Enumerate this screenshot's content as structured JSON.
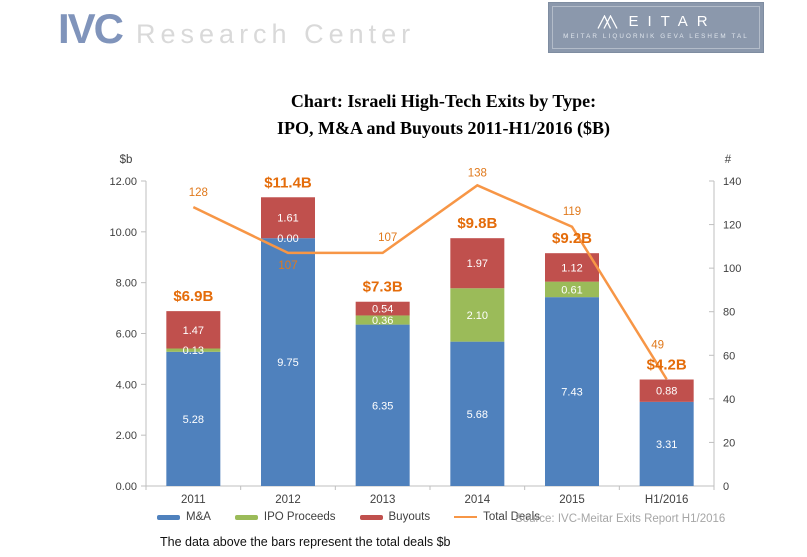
{
  "header": {
    "ivc_logo": {
      "name": "IVC",
      "subtitle": "Research Center"
    },
    "meitar_logo": {
      "name": "MEITAR",
      "subtitle": "MEITAR LIQUORNIK GEVA LESHEM TAL"
    }
  },
  "title": {
    "line1": "Chart: Israeli High-Tech Exits by Type:",
    "line2": "IPO, M&A and Buyouts 2011-H1/2016 ($B)"
  },
  "legend": [
    {
      "label": "M&A",
      "color": "#4f81bd",
      "type": "bar"
    },
    {
      "label": "IPO Proceeds",
      "color": "#9bbb59",
      "type": "bar"
    },
    {
      "label": "Buyouts",
      "color": "#c0504d",
      "type": "bar"
    },
    {
      "label": "Total Deals",
      "color": "#f79646",
      "type": "line"
    }
  ],
  "source_text": "Source: IVC-Meitar Exits Report H1/2016",
  "footnote": "The data above the bars represent the total deals $b",
  "chart_data": {
    "type": "bar",
    "subtype": "stacked-bars-with-line-overlay",
    "title": "Chart: Israeli High-Tech Exits by Type: IPO, M&A and Buyouts 2011-H1/2016 ($B)",
    "categories": [
      "2011",
      "2012",
      "2013",
      "2014",
      "2015",
      "H1/2016"
    ],
    "series": [
      {
        "name": "M&A",
        "color": "#4f81bd",
        "values": [
          5.28,
          9.75,
          6.35,
          5.68,
          7.43,
          3.31
        ],
        "labels": [
          "5.28",
          "9.75",
          "6.35",
          "5.68",
          "7.43",
          "3.31"
        ]
      },
      {
        "name": "IPO Proceeds",
        "color": "#9bbb59",
        "values": [
          0.13,
          0.0,
          0.36,
          2.1,
          0.61,
          0.0
        ],
        "labels": [
          "0.13",
          "0.00",
          "0.36",
          "2.10",
          "0.61",
          ""
        ]
      },
      {
        "name": "Buyouts",
        "color": "#c0504d",
        "values": [
          1.47,
          1.61,
          0.54,
          1.97,
          1.12,
          0.88
        ],
        "labels": [
          "1.47",
          "1.61",
          "0.54",
          "1.97",
          "1.12",
          "0.88"
        ]
      }
    ],
    "line_series": {
      "name": "Total Deals",
      "color": "#f79646",
      "values": [
        128,
        107,
        107,
        138,
        119,
        49
      ],
      "labels": [
        "128",
        "107",
        "107",
        "138",
        "119",
        "49"
      ],
      "label_color": "#e0791c"
    },
    "bar_total_labels": {
      "values": [
        "$6.9B",
        "$11.4B",
        "$7.3B",
        "$9.8B",
        "$9.2B",
        "$4.2B"
      ],
      "color": "#e46c0a"
    },
    "left_axis": {
      "title": "$b",
      "min": 0,
      "max": 12,
      "step": 2,
      "decimals": 2
    },
    "right_axis": {
      "title": "#",
      "min": 0,
      "max": 140,
      "step": 20,
      "decimals": 0
    },
    "grid": false,
    "legend_position": "bottom",
    "axis_color": "#bfbfbf",
    "text_color": "#404040",
    "segment_label_color": "#ffffff"
  }
}
